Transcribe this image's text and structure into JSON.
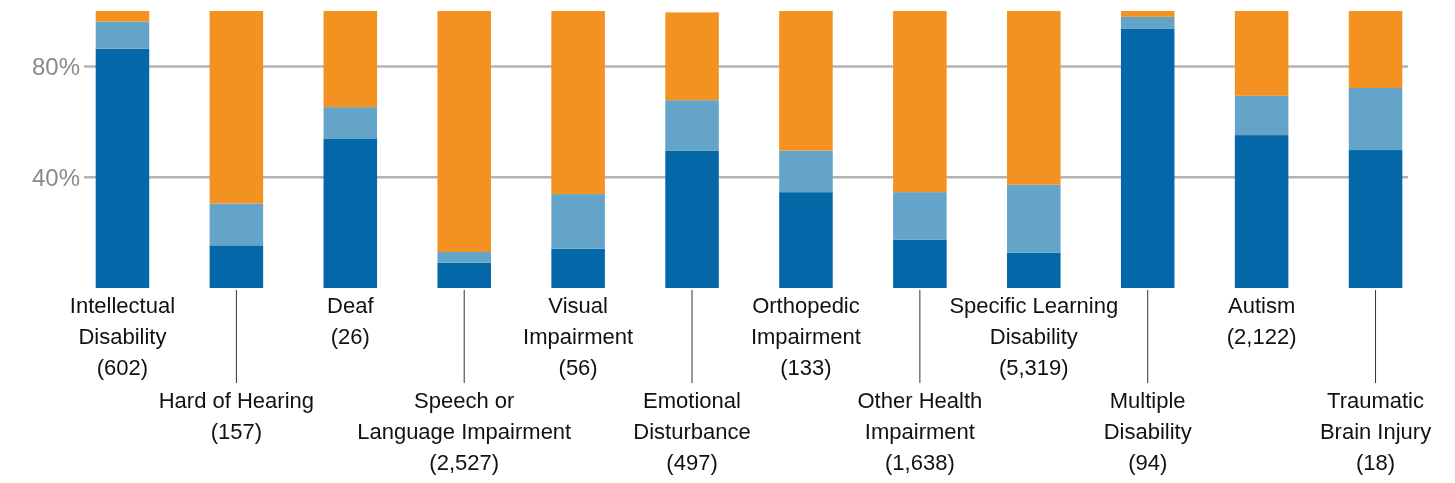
{
  "chart_data": {
    "type": "bar",
    "stacked": true,
    "categories": [
      "Intellectual\nDisability\n(602)",
      "Hard of Hearing\n(157)",
      "Deaf\n(26)",
      "Speech or\nLanguage Impairment\n(2,527)",
      "Visual\nImpairment\n(56)",
      "Emotional\nDisturbance\n(497)",
      "Orthopedic\nImpairment\n(133)",
      "Other Health\nImpairment\n(1,638)",
      "Specific Learning\nDisability\n(5,319)",
      "Multiple\nDisability\n(94)",
      "Autism\n(2,122)",
      "Traumatic\nBrain Injury\n(18)"
    ],
    "series": [
      {
        "color": "#0468a8",
        "values": [
          86.4,
          15.4,
          53.8,
          9.1,
          14.2,
          49.5,
          34.6,
          17.4,
          12.7,
          93.7,
          55.2,
          49.8
        ]
      },
      {
        "color": "#65a4c9",
        "values": [
          9.8,
          15.1,
          11.5,
          3.9,
          19.7,
          18.3,
          15.0,
          17.2,
          24.6,
          4.2,
          14.2,
          22.4
        ]
      },
      {
        "color": "#f49221",
        "values": [
          3.8,
          69.5,
          34.7,
          87.0,
          66.1,
          31.7,
          50.4,
          65.4,
          62.7,
          2.1,
          30.6,
          27.8
        ]
      }
    ],
    "ylim": [
      0,
      100
    ],
    "yticks": [
      {
        "value": 40,
        "label": "40%"
      },
      {
        "value": 80,
        "label": "80%"
      }
    ],
    "grid": "y"
  }
}
